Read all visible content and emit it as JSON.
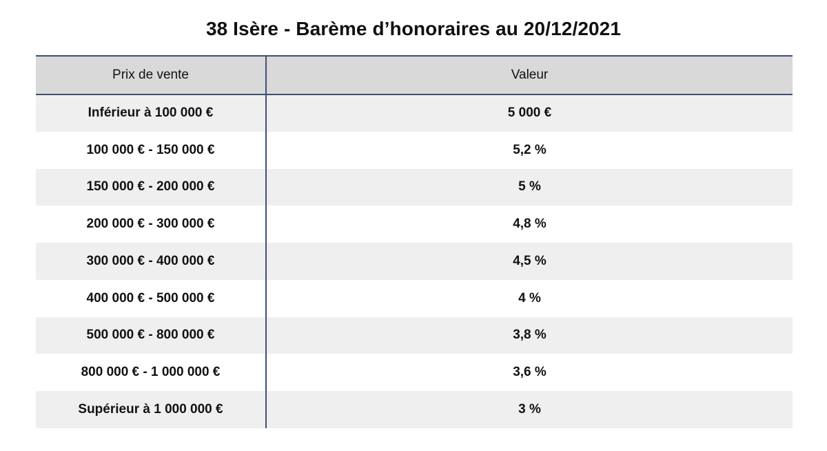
{
  "title": "38 Isère - Barème d’honoraires au 20/12/2021",
  "table": {
    "headers": [
      "Prix de vente",
      "Valeur"
    ],
    "rows": [
      [
        "Inférieur à 100 000 €",
        "5 000 €"
      ],
      [
        "100 000 € - 150 000 €",
        "5,2 %"
      ],
      [
        "150 000 € - 200 000 €",
        "5 %"
      ],
      [
        "200 000 € - 300 000 €",
        "4,8 %"
      ],
      [
        "300 000 € - 400 000 €",
        "4,5 %"
      ],
      [
        "400 000 € - 500 000 €",
        "4 %"
      ],
      [
        "500 000 € - 800 000 €",
        "3,8 %"
      ],
      [
        "800 000 € - 1 000 000 €",
        "3,6 %"
      ],
      [
        "Supérieur à 1 000 000 €",
        "3 %"
      ]
    ]
  },
  "colors": {
    "header_bg": "#d9d9d9",
    "row_shade": "#efefef",
    "rule": "#3e4f73"
  }
}
